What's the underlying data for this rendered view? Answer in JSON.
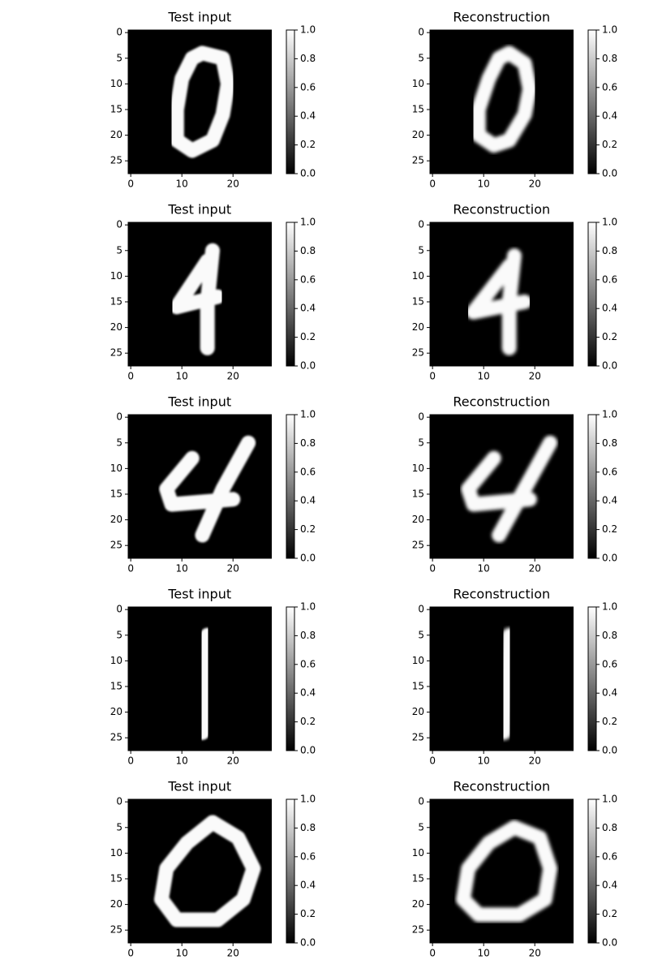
{
  "chart_data": [
    {
      "type": "image",
      "title": "Test input",
      "xlim": [
        -0.5,
        27.5
      ],
      "ylim": [
        27.5,
        -0.5
      ],
      "xticks": [
        0,
        10,
        20
      ],
      "yticks": [
        0,
        5,
        10,
        15,
        20,
        25
      ],
      "clim": [
        0,
        1
      ],
      "cticks": [
        {
          "value": 0,
          "label": "0.0"
        },
        {
          "value": 0.2,
          "label": "0.2"
        },
        {
          "value": 0.4,
          "label": "0.4"
        },
        {
          "value": 0.6,
          "label": "0.6"
        },
        {
          "value": 0.8,
          "label": "0.8"
        },
        {
          "value": 1,
          "label": "1.0"
        }
      ],
      "strokes": [
        {
          "x": [
            14,
            18,
            19,
            18,
            16,
            12,
            9,
            9,
            10,
            12,
            14
          ],
          "y": [
            4,
            5,
            10,
            16,
            21,
            23,
            21,
            15,
            9,
            5,
            4
          ]
        }
      ]
    },
    {
      "type": "image",
      "title": "Reconstruction",
      "xlim": [
        -0.5,
        27.5
      ],
      "ylim": [
        27.5,
        -0.5
      ],
      "xticks": [
        0,
        10,
        20
      ],
      "yticks": [
        0,
        5,
        10,
        15,
        20,
        25
      ],
      "clim": [
        0,
        1
      ],
      "cticks": [
        {
          "value": 0,
          "label": "0.0"
        },
        {
          "value": 0.2,
          "label": "0.2"
        },
        {
          "value": 0.4,
          "label": "0.4"
        },
        {
          "value": 0.6,
          "label": "0.6"
        },
        {
          "value": 0.8,
          "label": "0.8"
        },
        {
          "value": 1,
          "label": "1.0"
        }
      ],
      "strokes": [
        {
          "x": [
            15,
            18,
            19,
            18,
            15,
            12,
            9,
            9,
            11,
            13,
            15
          ],
          "y": [
            4,
            6,
            11,
            16,
            21,
            22,
            20,
            15,
            9,
            5,
            4
          ]
        }
      ]
    },
    {
      "type": "image",
      "title": "Test input",
      "xlim": [
        -0.5,
        27.5
      ],
      "ylim": [
        27.5,
        -0.5
      ],
      "xticks": [
        0,
        10,
        20
      ],
      "yticks": [
        0,
        5,
        10,
        15,
        20,
        25
      ],
      "clim": [
        0,
        1
      ],
      "cticks": [
        {
          "value": 0,
          "label": "0.0"
        },
        {
          "value": 0.2,
          "label": "0.2"
        },
        {
          "value": 0.4,
          "label": "0.4"
        },
        {
          "value": 0.6,
          "label": "0.6"
        },
        {
          "value": 0.8,
          "label": "0.8"
        },
        {
          "value": 1,
          "label": "1.0"
        }
      ],
      "strokes": [
        {
          "x": [
            16,
            15,
            15
          ],
          "y": [
            5,
            15,
            24
          ]
        },
        {
          "x": [
            15,
            9,
            17
          ],
          "y": [
            7,
            16,
            14
          ]
        }
      ]
    },
    {
      "type": "image",
      "title": "Reconstruction",
      "xlim": [
        -0.5,
        27.5
      ],
      "ylim": [
        27.5,
        -0.5
      ],
      "xticks": [
        0,
        10,
        20
      ],
      "yticks": [
        0,
        5,
        10,
        15,
        20,
        25
      ],
      "clim": [
        0,
        1
      ],
      "cticks": [
        {
          "value": 0,
          "label": "0.0"
        },
        {
          "value": 0.2,
          "label": "0.2"
        },
        {
          "value": 0.4,
          "label": "0.4"
        },
        {
          "value": 0.6,
          "label": "0.6"
        },
        {
          "value": 0.8,
          "label": "0.8"
        },
        {
          "value": 1,
          "label": "1.0"
        }
      ],
      "strokes": [
        {
          "x": [
            16,
            15,
            15
          ],
          "y": [
            6,
            15,
            24
          ]
        },
        {
          "x": [
            15,
            8,
            18
          ],
          "y": [
            8,
            17,
            15
          ]
        }
      ]
    },
    {
      "type": "image",
      "title": "Test input",
      "xlim": [
        -0.5,
        27.5
      ],
      "ylim": [
        27.5,
        -0.5
      ],
      "xticks": [
        0,
        10,
        20
      ],
      "yticks": [
        0,
        5,
        10,
        15,
        20,
        25
      ],
      "clim": [
        0,
        1
      ],
      "cticks": [
        {
          "value": 0,
          "label": "0.0"
        },
        {
          "value": 0.2,
          "label": "0.2"
        },
        {
          "value": 0.4,
          "label": "0.4"
        },
        {
          "value": 0.6,
          "label": "0.6"
        },
        {
          "value": 0.8,
          "label": "0.8"
        },
        {
          "value": 1,
          "label": "1.0"
        }
      ],
      "strokes": [
        {
          "x": [
            12,
            7,
            8,
            20
          ],
          "y": [
            8,
            14,
            17,
            16
          ]
        },
        {
          "x": [
            23,
            18,
            14
          ],
          "y": [
            5,
            14,
            23
          ]
        }
      ]
    },
    {
      "type": "image",
      "title": "Reconstruction",
      "xlim": [
        -0.5,
        27.5
      ],
      "ylim": [
        27.5,
        -0.5
      ],
      "xticks": [
        0,
        10,
        20
      ],
      "yticks": [
        0,
        5,
        10,
        15,
        20,
        25
      ],
      "clim": [
        0,
        1
      ],
      "cticks": [
        {
          "value": 0,
          "label": "0.0"
        },
        {
          "value": 0.2,
          "label": "0.2"
        },
        {
          "value": 0.4,
          "label": "0.4"
        },
        {
          "value": 0.6,
          "label": "0.6"
        },
        {
          "value": 0.8,
          "label": "0.8"
        },
        {
          "value": 1,
          "label": "1.0"
        }
      ],
      "strokes": [
        {
          "x": [
            12,
            7,
            8,
            19
          ],
          "y": [
            8,
            14,
            17,
            16
          ]
        },
        {
          "x": [
            23,
            18,
            13
          ],
          "y": [
            5,
            14,
            23
          ]
        }
      ]
    },
    {
      "type": "image",
      "title": "Test input",
      "xlim": [
        -0.5,
        27.5
      ],
      "ylim": [
        27.5,
        -0.5
      ],
      "xticks": [
        0,
        10,
        20
      ],
      "yticks": [
        0,
        5,
        10,
        15,
        20,
        25
      ],
      "clim": [
        0,
        1
      ],
      "cticks": [
        {
          "value": 0,
          "label": "0.0"
        },
        {
          "value": 0.2,
          "label": "0.2"
        },
        {
          "value": 0.4,
          "label": "0.4"
        },
        {
          "value": 0.6,
          "label": "0.6"
        },
        {
          "value": 0.8,
          "label": "0.8"
        },
        {
          "value": 1,
          "label": "1.0"
        }
      ],
      "strokes": [
        {
          "x": [
            15,
            14
          ],
          "y": [
            5,
            24
          ]
        }
      ]
    },
    {
      "type": "image",
      "title": "Reconstruction",
      "xlim": [
        -0.5,
        27.5
      ],
      "ylim": [
        27.5,
        -0.5
      ],
      "xticks": [
        0,
        10,
        20
      ],
      "yticks": [
        0,
        5,
        10,
        15,
        20,
        25
      ],
      "clim": [
        0,
        1
      ],
      "cticks": [
        {
          "value": 0,
          "label": "0.0"
        },
        {
          "value": 0.2,
          "label": "0.2"
        },
        {
          "value": 0.4,
          "label": "0.4"
        },
        {
          "value": 0.6,
          "label": "0.6"
        },
        {
          "value": 0.8,
          "label": "0.8"
        },
        {
          "value": 1,
          "label": "1.0"
        }
      ],
      "strokes": [
        {
          "x": [
            15,
            14
          ],
          "y": [
            5,
            24
          ]
        }
      ]
    },
    {
      "type": "image",
      "title": "Test input",
      "xlim": [
        -0.5,
        27.5
      ],
      "ylim": [
        27.5,
        -0.5
      ],
      "xticks": [
        0,
        10,
        20
      ],
      "yticks": [
        0,
        5,
        10,
        15,
        20,
        25
      ],
      "clim": [
        0,
        1
      ],
      "cticks": [
        {
          "value": 0,
          "label": "0.0"
        },
        {
          "value": 0.2,
          "label": "0.2"
        },
        {
          "value": 0.4,
          "label": "0.4"
        },
        {
          "value": 0.6,
          "label": "0.6"
        },
        {
          "value": 0.8,
          "label": "0.8"
        },
        {
          "value": 1,
          "label": "1.0"
        }
      ],
      "strokes": [
        {
          "x": [
            16,
            21,
            24,
            22,
            17,
            9,
            6,
            7,
            11,
            16
          ],
          "y": [
            4,
            7,
            13,
            19,
            23,
            23,
            19,
            13,
            8,
            4
          ]
        }
      ]
    },
    {
      "type": "image",
      "title": "Reconstruction",
      "xlim": [
        -0.5,
        27.5
      ],
      "ylim": [
        27.5,
        -0.5
      ],
      "xticks": [
        0,
        10,
        20
      ],
      "yticks": [
        0,
        5,
        10,
        15,
        20,
        25
      ],
      "clim": [
        0,
        1
      ],
      "cticks": [
        {
          "value": 0,
          "label": "0.0"
        },
        {
          "value": 0.2,
          "label": "0.2"
        },
        {
          "value": 0.4,
          "label": "0.4"
        },
        {
          "value": 0.6,
          "label": "0.6"
        },
        {
          "value": 0.8,
          "label": "0.8"
        },
        {
          "value": 1,
          "label": "1.0"
        }
      ],
      "strokes": [
        {
          "x": [
            16,
            21,
            23,
            22,
            17,
            9,
            6,
            7,
            11,
            16
          ],
          "y": [
            5,
            7,
            13,
            19,
            22,
            22,
            19,
            13,
            8,
            5
          ]
        }
      ]
    }
  ]
}
